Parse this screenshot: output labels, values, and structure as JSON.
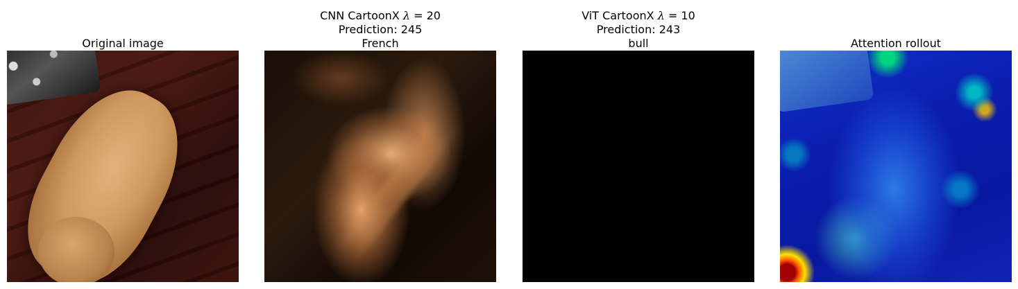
{
  "panels": [
    {
      "title_lines": [
        "Original image"
      ]
    },
    {
      "title_parts": {
        "prefix": "CNN CartoonX ",
        "symbol": "λ",
        "equals": " = 20"
      },
      "title_lines": [
        "Prediction: 245",
        "French"
      ]
    },
    {
      "title_parts": {
        "prefix": "ViT CartoonX ",
        "symbol": "λ",
        "equals": " = 10"
      },
      "title_lines": [
        "Prediction: 243",
        "bull"
      ]
    },
    {
      "title_lines": [
        "Attention rollout"
      ]
    }
  ],
  "colors": {
    "background": "#ffffff",
    "vit_mask": "#000000"
  }
}
